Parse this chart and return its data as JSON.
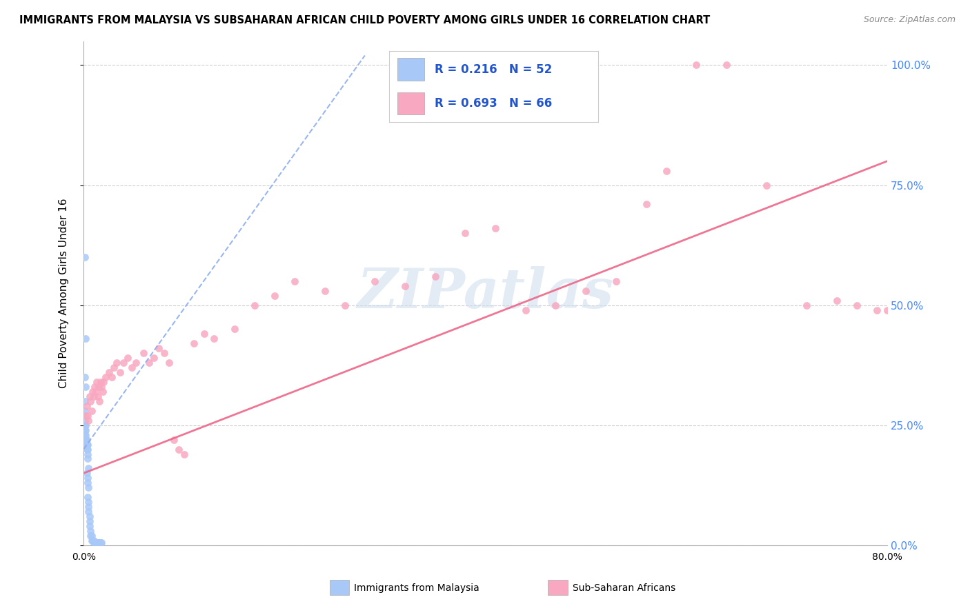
{
  "title": "IMMIGRANTS FROM MALAYSIA VS SUBSAHARAN AFRICAN CHILD POVERTY AMONG GIRLS UNDER 16 CORRELATION CHART",
  "source": "Source: ZipAtlas.com",
  "ylabel": "Child Poverty Among Girls Under 16",
  "xlim": [
    0,
    0.8
  ],
  "ylim": [
    0,
    1.05
  ],
  "x_tick_pos": [
    0.0,
    0.1,
    0.2,
    0.3,
    0.4,
    0.5,
    0.6,
    0.7,
    0.8
  ],
  "x_tick_labels": [
    "0.0%",
    "",
    "",
    "",
    "",
    "",
    "",
    "",
    "80.0%"
  ],
  "y_ticks": [
    0.0,
    0.25,
    0.5,
    0.75,
    1.0
  ],
  "y_tick_labels": [
    "0.0%",
    "25.0%",
    "50.0%",
    "75.0%",
    "100.0%"
  ],
  "watermark": "ZIPatlas",
  "blue_color": "#a8c8f8",
  "pink_color": "#f8a8c0",
  "blue_line_color": "#88aaee",
  "pink_line_color": "#ee6688",
  "blue_scatter": [
    [
      0.001,
      0.6
    ],
    [
      0.002,
      0.43
    ],
    [
      0.001,
      0.35
    ],
    [
      0.002,
      0.33
    ],
    [
      0.001,
      0.3
    ],
    [
      0.001,
      0.28
    ],
    [
      0.001,
      0.26
    ],
    [
      0.001,
      0.25
    ],
    [
      0.002,
      0.25
    ],
    [
      0.001,
      0.24
    ],
    [
      0.002,
      0.24
    ],
    [
      0.001,
      0.23
    ],
    [
      0.002,
      0.23
    ],
    [
      0.001,
      0.22
    ],
    [
      0.002,
      0.22
    ],
    [
      0.002,
      0.22
    ],
    [
      0.003,
      0.22
    ],
    [
      0.002,
      0.21
    ],
    [
      0.003,
      0.21
    ],
    [
      0.003,
      0.21
    ],
    [
      0.004,
      0.21
    ],
    [
      0.003,
      0.2
    ],
    [
      0.004,
      0.2
    ],
    [
      0.004,
      0.19
    ],
    [
      0.004,
      0.18
    ],
    [
      0.005,
      0.16
    ],
    [
      0.003,
      0.15
    ],
    [
      0.004,
      0.14
    ],
    [
      0.004,
      0.13
    ],
    [
      0.005,
      0.12
    ],
    [
      0.004,
      0.1
    ],
    [
      0.005,
      0.09
    ],
    [
      0.005,
      0.08
    ],
    [
      0.005,
      0.07
    ],
    [
      0.006,
      0.06
    ],
    [
      0.006,
      0.05
    ],
    [
      0.006,
      0.04
    ],
    [
      0.007,
      0.03
    ],
    [
      0.007,
      0.02
    ],
    [
      0.008,
      0.02
    ],
    [
      0.008,
      0.01
    ],
    [
      0.009,
      0.01
    ],
    [
      0.01,
      0.01
    ],
    [
      0.01,
      0.005
    ],
    [
      0.011,
      0.005
    ],
    [
      0.012,
      0.005
    ],
    [
      0.013,
      0.005
    ],
    [
      0.014,
      0.005
    ],
    [
      0.015,
      0.005
    ],
    [
      0.016,
      0.005
    ],
    [
      0.017,
      0.005
    ],
    [
      0.018,
      0.005
    ]
  ],
  "pink_scatter": [
    [
      0.002,
      0.27
    ],
    [
      0.003,
      0.29
    ],
    [
      0.004,
      0.27
    ],
    [
      0.005,
      0.26
    ],
    [
      0.006,
      0.31
    ],
    [
      0.007,
      0.3
    ],
    [
      0.008,
      0.28
    ],
    [
      0.009,
      0.32
    ],
    [
      0.01,
      0.31
    ],
    [
      0.011,
      0.33
    ],
    [
      0.012,
      0.32
    ],
    [
      0.013,
      0.34
    ],
    [
      0.014,
      0.31
    ],
    [
      0.015,
      0.33
    ],
    [
      0.016,
      0.3
    ],
    [
      0.017,
      0.34
    ],
    [
      0.018,
      0.33
    ],
    [
      0.019,
      0.32
    ],
    [
      0.02,
      0.34
    ],
    [
      0.022,
      0.35
    ],
    [
      0.025,
      0.36
    ],
    [
      0.028,
      0.35
    ],
    [
      0.03,
      0.37
    ],
    [
      0.033,
      0.38
    ],
    [
      0.036,
      0.36
    ],
    [
      0.04,
      0.38
    ],
    [
      0.044,
      0.39
    ],
    [
      0.048,
      0.37
    ],
    [
      0.052,
      0.38
    ],
    [
      0.06,
      0.4
    ],
    [
      0.065,
      0.38
    ],
    [
      0.07,
      0.39
    ],
    [
      0.075,
      0.41
    ],
    [
      0.08,
      0.4
    ],
    [
      0.085,
      0.38
    ],
    [
      0.09,
      0.22
    ],
    [
      0.095,
      0.2
    ],
    [
      0.1,
      0.19
    ],
    [
      0.11,
      0.42
    ],
    [
      0.12,
      0.44
    ],
    [
      0.13,
      0.43
    ],
    [
      0.15,
      0.45
    ],
    [
      0.17,
      0.5
    ],
    [
      0.19,
      0.52
    ],
    [
      0.21,
      0.55
    ],
    [
      0.24,
      0.53
    ],
    [
      0.26,
      0.5
    ],
    [
      0.29,
      0.55
    ],
    [
      0.32,
      0.54
    ],
    [
      0.35,
      0.56
    ],
    [
      0.38,
      0.65
    ],
    [
      0.41,
      0.66
    ],
    [
      0.44,
      0.49
    ],
    [
      0.47,
      0.5
    ],
    [
      0.5,
      0.53
    ],
    [
      0.53,
      0.55
    ],
    [
      0.56,
      0.71
    ],
    [
      0.58,
      0.78
    ],
    [
      0.61,
      1.0
    ],
    [
      0.64,
      1.0
    ],
    [
      0.68,
      0.75
    ],
    [
      0.72,
      0.5
    ],
    [
      0.75,
      0.51
    ],
    [
      0.77,
      0.5
    ],
    [
      0.79,
      0.49
    ],
    [
      0.8,
      0.49
    ]
  ],
  "blue_line_x": [
    0.0,
    0.28
  ],
  "blue_line_y": [
    0.2,
    1.02
  ],
  "pink_line_x": [
    0.0,
    0.8
  ],
  "pink_line_y": [
    0.15,
    0.8
  ],
  "scatter_size": 55,
  "legend_R_blue": "0.216",
  "legend_N_blue": "52",
  "legend_R_pink": "0.693",
  "legend_N_pink": "66",
  "legend_label_blue": "Immigrants from Malaysia",
  "legend_label_pink": "Sub-Saharan Africans"
}
